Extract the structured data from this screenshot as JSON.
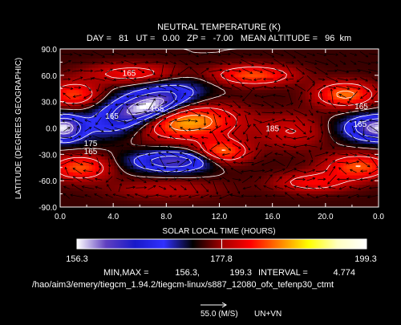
{
  "header": {
    "title": "NEUTRAL TEMPERATURE (K)",
    "subtitle": "DAY =   81   UT =   0.00   ZP =   -7.00   MEAN ALTITUDE =   96  km"
  },
  "chart_data": {
    "type": "heatmap",
    "title": "NEUTRAL TEMPERATURE (K)",
    "xlabel": "SOLAR LOCAL TIME (HOURS)",
    "ylabel": "LATITUDE (DEGREES GEOGRAPHIC)",
    "xlim": [
      0,
      24
    ],
    "ylim": [
      -90,
      90
    ],
    "x_ticks": [
      "0.0",
      "4.0",
      "8.0",
      "12.0",
      "16.0",
      "20.0",
      "0.0"
    ],
    "y_ticks": [
      "90.0",
      "60.0",
      "30.0",
      "0.0",
      "-30.0",
      "-60.0",
      "-90.0"
    ],
    "x_tick_values": [
      0,
      4,
      8,
      12,
      16,
      20,
      24
    ],
    "y_tick_values": [
      90,
      60,
      30,
      0,
      -30,
      -60,
      -90
    ],
    "background_value": 175,
    "features": [
      {
        "x": 6.3,
        "y": 22,
        "sx": 2.6,
        "sy": 14,
        "amp": -19,
        "rot": -0.3
      },
      {
        "x": 6.6,
        "y": 24,
        "sx": 1.2,
        "sy": 6,
        "amp": -5,
        "rot": -0.3
      },
      {
        "x": 9.2,
        "y": 8,
        "sx": 2.8,
        "sy": 14,
        "amp": 14
      },
      {
        "x": 12.2,
        "y": -28,
        "sx": 1.4,
        "sy": 10,
        "amp": 11
      },
      {
        "x": 8.6,
        "y": -38,
        "sx": 2.2,
        "sy": 8,
        "amp": -14
      },
      {
        "x": 1.5,
        "y": -45,
        "sx": 1.6,
        "sy": 10,
        "amp": 10
      },
      {
        "x": 1.0,
        "y": 38,
        "sx": 1.4,
        "sy": 10,
        "amp": 9
      },
      {
        "x": 0.2,
        "y": 0,
        "sx": 1.0,
        "sy": 10,
        "amp": -18
      },
      {
        "x": 24.2,
        "y": 0,
        "sx": 1.8,
        "sy": 10,
        "amp": -18
      },
      {
        "x": 21.5,
        "y": 38,
        "sx": 1.6,
        "sy": 10,
        "amp": 11
      },
      {
        "x": 22.5,
        "y": -44,
        "sx": 1.8,
        "sy": 10,
        "amp": 10
      },
      {
        "x": 17.5,
        "y": -4,
        "sx": 1.8,
        "sy": 14,
        "amp": 5
      },
      {
        "x": 14.5,
        "y": 60,
        "sx": 2.2,
        "sy": 8,
        "amp": 10
      },
      {
        "x": 5.5,
        "y": 62,
        "sx": 2.5,
        "sy": 8,
        "amp": 7
      },
      {
        "x": 8.0,
        "y": -70,
        "sx": 3.0,
        "sy": 8,
        "amp": 4
      },
      {
        "x": 19.0,
        "y": -62,
        "sx": 2.0,
        "sy": 8,
        "amp": 7
      }
    ],
    "contour_labels": [
      {
        "text": "165",
        "x": 5.2,
        "y": 63
      },
      {
        "text": "165",
        "x": 7.3,
        "y": 23
      },
      {
        "text": "165",
        "x": 3.9,
        "y": 14
      },
      {
        "text": "175",
        "x": 2.3,
        "y": -17
      },
      {
        "text": "165",
        "x": 2.3,
        "y": -26
      },
      {
        "text": "185",
        "x": 16.0,
        "y": 0
      },
      {
        "text": "165",
        "x": 22.7,
        "y": 25
      },
      {
        "text": "165",
        "x": 22.6,
        "y": 5
      }
    ],
    "min": 156.3,
    "max": 199.3,
    "interval": 4.774,
    "colorbar": {
      "min_label": "156.3",
      "mid_label": "177.8",
      "max_label": "199.3"
    },
    "colormap": [
      "#ffffff",
      "#6040c0",
      "#1818c8",
      "#3030ff",
      "#000000",
      "#a00000",
      "#ff0000",
      "#ff8000",
      "#ffff00",
      "#ffffc0",
      "#ffffff"
    ],
    "wind": {
      "reference": "55.0 (M/S)",
      "label": "UN+VN"
    }
  },
  "stats": {
    "minmax_label": "MIN,MAX =",
    "min": "156.3,",
    "max": "199.3",
    "interval_label": "INTERVAL =",
    "interval": "4.774"
  },
  "file_path": "/hao/aim3/emery/tiegcm_1.94.2/tiegcm-linux/s887_12080_ofx_tefenp30_ctmt",
  "colors": {
    "background": "#000000",
    "text": "#ffffff",
    "base_field": "#f0a040"
  }
}
